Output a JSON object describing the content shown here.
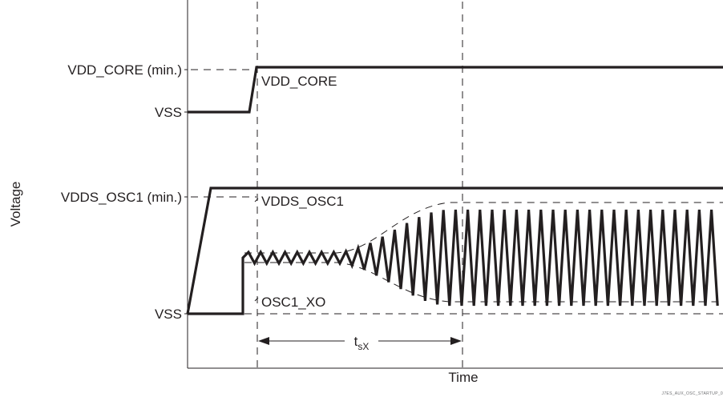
{
  "diagram": {
    "y_axis_label": "Voltage",
    "x_axis_label": "Time",
    "levels": {
      "vdd_core_min": "VDD_CORE (min.)",
      "vss_top": "VSS",
      "vdds_osc1_min": "VDDS_OSC1 (min.)",
      "vss_bottom": "VSS"
    },
    "signals": {
      "vdd_core": "VDD_CORE",
      "vdds_osc1": "VDDS_OSC1",
      "osc1_xo": "OSC1_XO"
    },
    "interval": {
      "label_main": "t",
      "label_sub": "sX"
    },
    "figure_id": "J7ES_AUX_OSC_STARTUP_0"
  },
  "colors": {
    "ink": "#231f20",
    "background": "#ffffff"
  }
}
